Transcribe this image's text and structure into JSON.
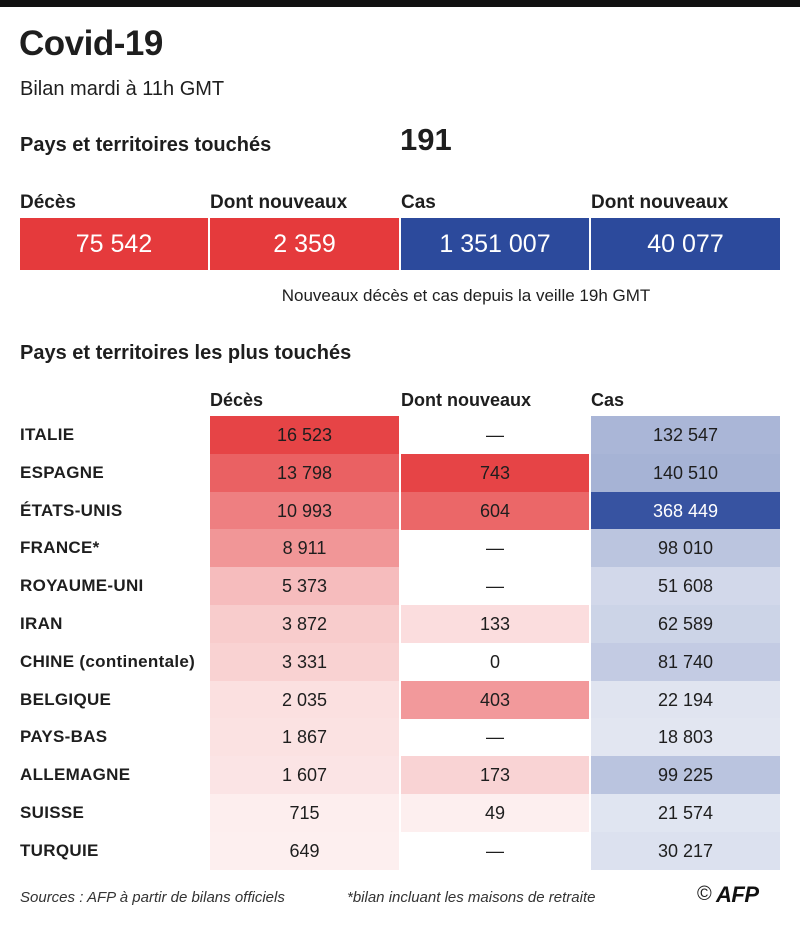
{
  "title": "Covid-19",
  "subtitle": "Bilan mardi à 11h GMT",
  "countries_touched": {
    "label": "Pays et territoires touchés",
    "value": "191"
  },
  "stats": [
    {
      "label": "Décès",
      "value": "75 542",
      "color": "#e53a3c"
    },
    {
      "label": "Dont nouveaux",
      "value": "2 359",
      "color": "#e53a3c"
    },
    {
      "label": "Cas",
      "value": "1 351 007",
      "color": "#2c4a9c"
    },
    {
      "label": "Dont nouveaux",
      "value": "40 077",
      "color": "#2c4a9c"
    }
  ],
  "note": "Nouveaux décès et cas depuis la veille 19h GMT",
  "section_title": "Pays et territoires les plus touchés",
  "chart_data": {
    "type": "table",
    "columns": [
      "Décès",
      "Dont nouveaux",
      "Cas"
    ],
    "rows": [
      {
        "country": "ITALIE",
        "deces": "16 523",
        "nouveaux": "—",
        "cas": "132 547"
      },
      {
        "country": "ESPAGNE",
        "deces": "13 798",
        "nouveaux": "743",
        "cas": "140 510"
      },
      {
        "country": "ÉTATS-UNIS",
        "deces": "10 993",
        "nouveaux": "604",
        "cas": "368 449"
      },
      {
        "country": "FRANCE*",
        "deces": "8 911",
        "nouveaux": "—",
        "cas": "98 010"
      },
      {
        "country": "ROYAUME-UNI",
        "deces": "5 373",
        "nouveaux": "—",
        "cas": "51 608"
      },
      {
        "country": "IRAN",
        "deces": "3 872",
        "nouveaux": "133",
        "cas": "62 589"
      },
      {
        "country": "CHINE (continentale)",
        "deces": "3 331",
        "nouveaux": "0",
        "cas": "81 740"
      },
      {
        "country": "BELGIQUE",
        "deces": "2 035",
        "nouveaux": "403",
        "cas": "22 194"
      },
      {
        "country": "PAYS-BAS",
        "deces": "1 867",
        "nouveaux": "—",
        "cas": "18 803"
      },
      {
        "country": "ALLEMAGNE",
        "deces": "1 607",
        "nouveaux": "173",
        "cas": "99 225"
      },
      {
        "country": "SUISSE",
        "deces": "715",
        "nouveaux": "49",
        "cas": "21 574"
      },
      {
        "country": "TURQUIE",
        "deces": "649",
        "nouveaux": "—",
        "cas": "30 217"
      }
    ],
    "colors": {
      "deaths": "#e53a3c",
      "cases": "#2c4a9c"
    }
  },
  "footer": {
    "sources": "Sources : AFP à partir de bilans officiels",
    "footnote": "*bilan incluant les maisons de retraite",
    "copyright": "©",
    "logo": "AFP"
  }
}
